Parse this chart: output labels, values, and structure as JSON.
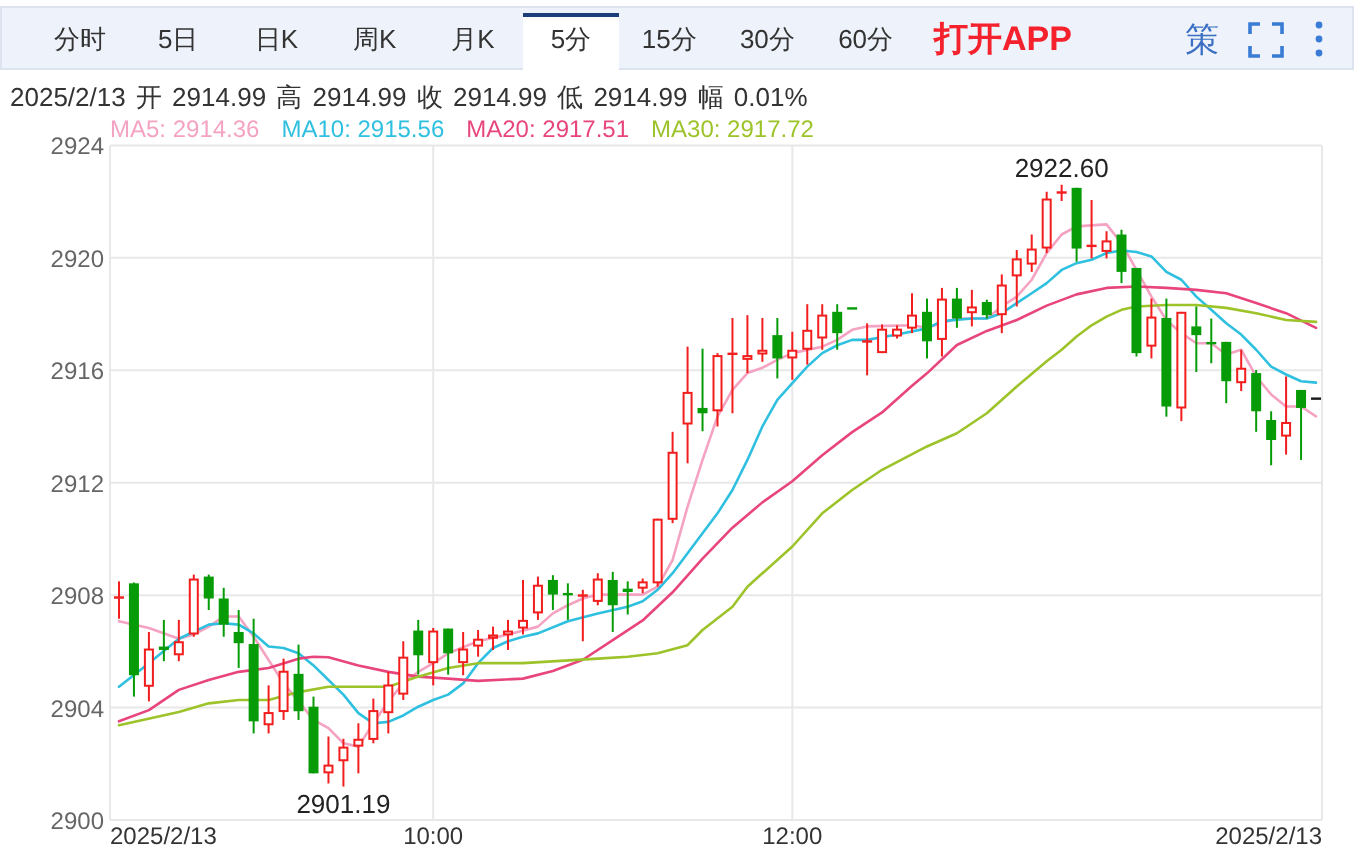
{
  "chart_data": {
    "type": "candlestick",
    "subtitle": "2025/2/13 开 2914.99 高 2914.99 收 2914.99 低 2914.99 幅 0.01%",
    "annotations": [
      "分时",
      "5日",
      "日K",
      "周K",
      "月K",
      "5分",
      "15分",
      "30分",
      "60分",
      "打开APP",
      "策",
      {
        "text": "2922.60",
        "x": "2025-02-13T13:30",
        "y": 2922.6
      },
      {
        "text": "2901.19",
        "x": "2025-02-13T09:30",
        "y": 2901.19
      }
    ],
    "x": [
      "2025-02-13T08:15",
      "2025-02-13T08:20",
      "2025-02-13T08:25",
      "2025-02-13T08:30",
      "2025-02-13T08:35",
      "2025-02-13T08:40",
      "2025-02-13T08:45",
      "2025-02-13T08:50",
      "2025-02-13T08:55",
      "2025-02-13T09:00",
      "2025-02-13T09:05",
      "2025-02-13T09:10",
      "2025-02-13T09:15",
      "2025-02-13T09:20",
      "2025-02-13T09:25",
      "2025-02-13T09:30",
      "2025-02-13T09:35",
      "2025-02-13T09:40",
      "2025-02-13T09:45",
      "2025-02-13T09:50",
      "2025-02-13T09:55",
      "2025-02-13T10:00",
      "2025-02-13T10:05",
      "2025-02-13T10:10",
      "2025-02-13T10:15",
      "2025-02-13T10:20",
      "2025-02-13T10:25",
      "2025-02-13T10:30",
      "2025-02-13T10:35",
      "2025-02-13T10:40",
      "2025-02-13T10:45",
      "2025-02-13T10:50",
      "2025-02-13T10:55",
      "2025-02-13T11:00",
      "2025-02-13T11:05",
      "2025-02-13T11:10",
      "2025-02-13T11:15",
      "2025-02-13T11:20",
      "2025-02-13T11:25",
      "2025-02-13T11:30",
      "2025-02-13T11:35",
      "2025-02-13T11:40",
      "2025-02-13T11:45",
      "2025-02-13T11:50",
      "2025-02-13T11:55",
      "2025-02-13T12:00",
      "2025-02-13T12:05",
      "2025-02-13T12:10",
      "2025-02-13T12:15",
      "2025-02-13T12:20",
      "2025-02-13T12:25",
      "2025-02-13T12:30",
      "2025-02-13T12:35",
      "2025-02-13T12:40",
      "2025-02-13T12:45",
      "2025-02-13T12:50",
      "2025-02-13T12:55",
      "2025-02-13T13:00",
      "2025-02-13T13:05",
      "2025-02-13T13:10",
      "2025-02-13T13:15",
      "2025-02-13T13:20",
      "2025-02-13T13:25",
      "2025-02-13T13:30",
      "2025-02-13T13:35",
      "2025-02-13T13:40",
      "2025-02-13T13:45",
      "2025-02-13T13:50",
      "2025-02-13T13:55",
      "2025-02-13T14:00",
      "2025-02-13T14:05",
      "2025-02-13T14:10",
      "2025-02-13T14:15",
      "2025-02-13T14:20",
      "2025-02-13T14:25",
      "2025-02-13T14:30",
      "2025-02-13T14:35",
      "2025-02-13T14:40",
      "2025-02-13T14:45",
      "2025-02-13T14:50",
      "2025-02-13T14:55"
    ],
    "ohlc": [
      [
        2907.88,
        2908.49,
        2907.16,
        2907.95
      ],
      [
        2908.42,
        2908.45,
        2904.39,
        2905.15
      ],
      [
        2904.74,
        2906.69,
        2904.22,
        2906.1
      ],
      [
        2906.17,
        2907.12,
        2905.65,
        2906.05
      ],
      [
        2905.86,
        2907.12,
        2905.65,
        2906.36
      ],
      [
        2906.6,
        2908.73,
        2906.52,
        2908.59
      ],
      [
        2908.66,
        2908.73,
        2907.47,
        2907.88
      ],
      [
        2907.88,
        2908.26,
        2906.52,
        2906.95
      ],
      [
        2906.69,
        2907.47,
        2905.41,
        2906.29
      ],
      [
        2906.26,
        2907.16,
        2903.08,
        2903.51
      ],
      [
        2903.37,
        2904.79,
        2903.08,
        2903.84
      ],
      [
        2903.84,
        2905.74,
        2903.56,
        2905.31
      ],
      [
        2905.2,
        2906.24,
        2903.56,
        2903.87
      ],
      [
        2904.03,
        2904.39,
        2901.66,
        2901.66
      ],
      [
        2901.66,
        2902.97,
        2901.3,
        2901.97
      ],
      [
        2902.09,
        2902.89,
        2901.19,
        2902.61
      ],
      [
        2902.61,
        2903.44,
        2901.66,
        2902.89
      ],
      [
        2902.85,
        2904.32,
        2902.73,
        2903.91
      ],
      [
        2903.8,
        2905.27,
        2903.08,
        2904.82
      ],
      [
        2904.46,
        2906.36,
        2904.27,
        2905.81
      ],
      [
        2906.74,
        2907.12,
        2905.17,
        2905.86
      ],
      [
        2905.58,
        2906.83,
        2904.79,
        2906.74
      ],
      [
        2906.81,
        2906.81,
        2905.17,
        2905.93
      ],
      [
        2905.58,
        2906.69,
        2905.15,
        2906.1
      ],
      [
        2906.17,
        2906.76,
        2905.81,
        2906.45
      ],
      [
        2906.45,
        2906.88,
        2906.05,
        2906.6
      ],
      [
        2906.57,
        2907.12,
        2906.05,
        2906.74
      ],
      [
        2906.81,
        2908.54,
        2906.6,
        2907.12
      ],
      [
        2907.35,
        2908.66,
        2907.12,
        2908.37
      ],
      [
        2908.54,
        2908.71,
        2907.47,
        2908.02
      ],
      [
        2908.07,
        2908.42,
        2907.12,
        2908.0
      ],
      [
        2907.95,
        2908.19,
        2906.36,
        2908.02
      ],
      [
        2907.76,
        2908.78,
        2907.64,
        2908.59
      ],
      [
        2908.54,
        2908.83,
        2906.69,
        2907.64
      ],
      [
        2908.23,
        2908.49,
        2907.31,
        2908.11
      ],
      [
        2908.23,
        2908.59,
        2908.07,
        2908.49
      ],
      [
        2908.42,
        2910.72,
        2908.3,
        2910.72
      ],
      [
        2910.68,
        2913.81,
        2910.56,
        2913.1
      ],
      [
        2914.07,
        2916.84,
        2912.69,
        2915.23
      ],
      [
        2914.66,
        2916.77,
        2913.83,
        2914.47
      ],
      [
        2914.54,
        2916.61,
        2914.0,
        2916.54
      ],
      [
        2916.56,
        2917.86,
        2914.47,
        2916.61
      ],
      [
        2916.37,
        2917.96,
        2915.9,
        2916.54
      ],
      [
        2916.56,
        2917.86,
        2916.3,
        2916.73
      ],
      [
        2917.25,
        2917.86,
        2915.71,
        2916.42
      ],
      [
        2916.42,
        2917.37,
        2915.66,
        2916.73
      ],
      [
        2916.73,
        2918.35,
        2916.2,
        2917.44
      ],
      [
        2917.13,
        2918.35,
        2916.73,
        2917.98
      ],
      [
        2918.08,
        2918.35,
        2916.73,
        2917.32
      ],
      [
        2918.2,
        2918.2,
        2918.2,
        2918.2
      ],
      [
        2917.01,
        2917.67,
        2915.82,
        2917.04
      ],
      [
        2916.61,
        2917.63,
        2916.61,
        2917.48
      ],
      [
        2917.2,
        2917.6,
        2917.13,
        2917.48
      ],
      [
        2917.48,
        2918.74,
        2917.32,
        2917.98
      ],
      [
        2918.08,
        2918.55,
        2916.42,
        2917.03
      ],
      [
        2917.08,
        2918.93,
        2916.49,
        2918.55
      ],
      [
        2918.55,
        2918.93,
        2917.51,
        2917.84
      ],
      [
        2918.03,
        2918.86,
        2917.56,
        2918.27
      ],
      [
        2918.43,
        2918.51,
        2917.84,
        2917.96
      ],
      [
        2917.96,
        2919.41,
        2917.32,
        2919.05
      ],
      [
        2919.34,
        2920.28,
        2918.27,
        2919.98
      ],
      [
        2919.76,
        2920.83,
        2919.5,
        2920.33
      ],
      [
        2920.33,
        2922.35,
        2920.17,
        2922.11
      ],
      [
        2922.3,
        2922.6,
        2922.02,
        2922.35
      ],
      [
        2922.49,
        2922.49,
        2919.86,
        2920.33
      ],
      [
        2920.4,
        2922.06,
        2919.98,
        2920.45
      ],
      [
        2920.21,
        2920.95,
        2919.98,
        2920.62
      ],
      [
        2920.83,
        2921.0,
        2919.1,
        2919.5
      ],
      [
        2919.64,
        2919.64,
        2916.49,
        2916.61
      ],
      [
        2916.84,
        2918.55,
        2916.42,
        2917.91
      ],
      [
        2917.86,
        2918.55,
        2914.35,
        2914.71
      ],
      [
        2914.64,
        2918.08,
        2914.19,
        2918.08
      ],
      [
        2917.56,
        2918.27,
        2915.94,
        2917.25
      ],
      [
        2916.99,
        2917.84,
        2916.25,
        2916.94
      ],
      [
        2917.01,
        2917.01,
        2914.83,
        2915.61
      ],
      [
        2915.54,
        2916.73,
        2915.26,
        2916.09
      ],
      [
        2915.9,
        2916.01,
        2913.81,
        2914.54
      ],
      [
        2914.23,
        2914.54,
        2912.62,
        2913.52
      ],
      [
        2913.64,
        2915.78,
        2913.0,
        2914.16
      ],
      [
        2915.3,
        2915.3,
        2912.81,
        2914.66
      ],
      [
        2914.99,
        2914.99,
        2914.99,
        2914.99
      ]
    ],
    "colors": [
      "#f21d1d",
      "#079c07",
      "#f21d1d",
      "#079c07",
      "#f21d1d",
      "#f21d1d",
      "#079c07",
      "#079c07",
      "#079c07",
      "#079c07",
      "#f21d1d",
      "#f21d1d",
      "#079c07",
      "#079c07",
      "#f21d1d",
      "#f21d1d",
      "#f21d1d",
      "#f21d1d",
      "#f21d1d",
      "#f21d1d",
      "#079c07",
      "#f21d1d",
      "#079c07",
      "#f21d1d",
      "#f21d1d",
      "#f21d1d",
      "#f21d1d",
      "#f21d1d",
      "#f21d1d",
      "#079c07",
      "#079c07",
      "#f21d1d",
      "#f21d1d",
      "#079c07",
      "#079c07",
      "#f21d1d",
      "#f21d1d",
      "#f21d1d",
      "#f21d1d",
      "#079c07",
      "#f21d1d",
      "#f21d1d",
      "#f21d1d",
      "#f21d1d",
      "#079c07",
      "#f21d1d",
      "#f21d1d",
      "#f21d1d",
      "#079c07",
      "#079c07",
      "#f21d1d",
      "#f21d1d",
      "#f21d1d",
      "#f21d1d",
      "#079c07",
      "#f21d1d",
      "#079c07",
      "#f21d1d",
      "#079c07",
      "#f21d1d",
      "#f21d1d",
      "#f21d1d",
      "#f21d1d",
      "#f21d1d",
      "#079c07",
      "#f21d1d",
      "#f21d1d",
      "#079c07",
      "#079c07",
      "#f21d1d",
      "#079c07",
      "#f21d1d",
      "#079c07",
      "#079c07",
      "#079c07",
      "#f21d1d",
      "#079c07",
      "#079c07",
      "#f21d1d",
      "#079c07",
      "#1a1a1a"
    ],
    "series": [
      {
        "name": "MA5: 2914.36",
        "type": "line",
        "color": "#f4a3c2",
        "x": [
          "2025-02-13T08:15",
          "2025-02-13T08:25",
          "2025-02-13T08:35",
          "2025-02-13T08:40",
          "2025-02-13T08:45",
          "2025-02-13T08:50",
          "2025-02-13T08:55",
          "2025-02-13T09:00",
          "2025-02-13T09:05",
          "2025-02-13T09:10",
          "2025-02-13T09:15",
          "2025-02-13T09:20",
          "2025-02-13T09:25",
          "2025-02-13T09:30",
          "2025-02-13T09:35",
          "2025-02-13T09:40",
          "2025-02-13T09:45",
          "2025-02-13T09:50",
          "2025-02-13T09:55",
          "2025-02-13T10:00",
          "2025-02-13T10:05",
          "2025-02-13T10:15",
          "2025-02-13T10:25",
          "2025-02-13T10:35",
          "2025-02-13T10:40",
          "2025-02-13T10:45",
          "2025-02-13T10:50",
          "2025-02-13T10:55",
          "2025-02-13T11:10",
          "2025-02-13T11:15",
          "2025-02-13T11:20",
          "2025-02-13T11:25",
          "2025-02-13T11:30",
          "2025-02-13T11:35",
          "2025-02-13T11:40",
          "2025-02-13T11:45",
          "2025-02-13T11:50",
          "2025-02-13T11:55",
          "2025-02-13T12:00",
          "2025-02-13T12:10",
          "2025-02-13T12:15",
          "2025-02-13T12:20",
          "2025-02-13T12:25",
          "2025-02-13T12:40",
          "2025-02-13T12:45",
          "2025-02-13T12:50",
          "2025-02-13T12:55",
          "2025-02-13T13:05",
          "2025-02-13T13:10",
          "2025-02-13T13:15",
          "2025-02-13T13:20",
          "2025-02-13T13:25",
          "2025-02-13T13:30",
          "2025-02-13T13:35",
          "2025-02-13T13:45",
          "2025-02-13T13:50",
          "2025-02-13T13:55",
          "2025-02-13T14:00",
          "2025-02-13T14:05",
          "2025-02-13T14:10",
          "2025-02-13T14:15",
          "2025-02-13T14:20",
          "2025-02-13T14:25",
          "2025-02-13T14:30",
          "2025-02-13T14:35",
          "2025-02-13T14:40",
          "2025-02-13T14:45",
          "2025-02-13T14:50",
          "2025-02-13T14:55"
        ],
        "values": [
          2907.07,
          2906.83,
          2906.45,
          2906.6,
          2906.88,
          2907.24,
          2907.24,
          2906.52,
          2905.69,
          2904.86,
          2904.22,
          2903.56,
          2903.27,
          2902.73,
          2902.61,
          2903.44,
          2904.22,
          2904.86,
          2905.27,
          2905.58,
          2905.93,
          2906.36,
          2906.6,
          2906.88,
          2907.35,
          2907.64,
          2907.88,
          2908.02,
          2908.02,
          2908.3,
          2909.25,
          2911.15,
          2912.81,
          2914.35,
          2915.3,
          2915.9,
          2916.09,
          2916.37,
          2916.61,
          2916.84,
          2917.08,
          2917.44,
          2917.56,
          2917.6,
          2917.51,
          2917.67,
          2917.84,
          2917.84,
          2918.27,
          2918.62,
          2919.22,
          2920.17,
          2920.83,
          2921.12,
          2921.19,
          2920.52,
          2919.57,
          2918.62,
          2917.79,
          2917.32,
          2916.96,
          2916.96,
          2916.56,
          2916.73,
          2915.78,
          2915.14,
          2914.71,
          2914.71,
          2914.36
        ]
      },
      {
        "name": "MA10: 2915.56",
        "type": "line",
        "color": "#2fc0e0",
        "x": [
          "2025-02-13T08:15",
          "2025-02-13T08:25",
          "2025-02-13T08:35",
          "2025-02-13T08:45",
          "2025-02-13T08:50",
          "2025-02-13T08:55",
          "2025-02-13T09:00",
          "2025-02-13T09:05",
          "2025-02-13T09:10",
          "2025-02-13T09:15",
          "2025-02-13T09:20",
          "2025-02-13T09:25",
          "2025-02-13T09:30",
          "2025-02-13T09:35",
          "2025-02-13T09:40",
          "2025-02-13T09:45",
          "2025-02-13T09:50",
          "2025-02-13T09:55",
          "2025-02-13T10:00",
          "2025-02-13T10:05",
          "2025-02-13T10:10",
          "2025-02-13T10:15",
          "2025-02-13T10:20",
          "2025-02-13T10:25",
          "2025-02-13T10:30",
          "2025-02-13T10:35",
          "2025-02-13T10:45",
          "2025-02-13T10:55",
          "2025-02-13T11:05",
          "2025-02-13T11:10",
          "2025-02-13T11:15",
          "2025-02-13T11:20",
          "2025-02-13T11:25",
          "2025-02-13T11:30",
          "2025-02-13T11:35",
          "2025-02-13T11:40",
          "2025-02-13T11:45",
          "2025-02-13T11:50",
          "2025-02-13T11:55",
          "2025-02-13T12:00",
          "2025-02-13T12:05",
          "2025-02-13T12:10",
          "2025-02-13T12:15",
          "2025-02-13T12:20",
          "2025-02-13T12:25",
          "2025-02-13T12:35",
          "2025-02-13T12:45",
          "2025-02-13T12:50",
          "2025-02-13T13:00",
          "2025-02-13T13:05",
          "2025-02-13T13:10",
          "2025-02-13T13:15",
          "2025-02-13T13:20",
          "2025-02-13T13:25",
          "2025-02-13T13:30",
          "2025-02-13T13:35",
          "2025-02-13T13:40",
          "2025-02-13T13:45",
          "2025-02-13T13:50",
          "2025-02-13T13:55",
          "2025-02-13T14:00",
          "2025-02-13T14:05",
          "2025-02-13T14:10",
          "2025-02-13T14:15",
          "2025-02-13T14:20",
          "2025-02-13T14:25",
          "2025-02-13T14:30",
          "2025-02-13T14:35",
          "2025-02-13T14:40",
          "2025-02-13T14:45",
          "2025-02-13T14:50",
          "2025-02-13T14:55"
        ],
        "values": [
          2904.74,
          2905.58,
          2906.45,
          2906.95,
          2907.0,
          2906.95,
          2906.64,
          2906.17,
          2906.12,
          2905.93,
          2905.5,
          2904.98,
          2904.46,
          2903.8,
          2903.44,
          2903.49,
          2903.72,
          2904.03,
          2904.27,
          2904.46,
          2904.86,
          2905.58,
          2906.12,
          2906.36,
          2906.52,
          2906.64,
          2907.07,
          2907.35,
          2907.59,
          2907.78,
          2908.19,
          2908.78,
          2909.49,
          2910.2,
          2910.91,
          2911.74,
          2912.81,
          2914.0,
          2914.95,
          2915.54,
          2916.13,
          2916.61,
          2916.89,
          2917.08,
          2917.08,
          2917.27,
          2917.49,
          2917.75,
          2917.84,
          2917.84,
          2918.03,
          2918.39,
          2918.74,
          2919.1,
          2919.57,
          2919.81,
          2919.93,
          2920.17,
          2920.26,
          2920.21,
          2920.05,
          2919.5,
          2919.22,
          2918.62,
          2918.15,
          2917.67,
          2917.27,
          2916.73,
          2916.13,
          2915.85,
          2915.61,
          2915.56
        ]
      },
      {
        "name": "MA20: 2917.51",
        "type": "line",
        "color": "#e8457c",
        "x": [
          "2025-02-13T08:15",
          "2025-02-13T08:25",
          "2025-02-13T08:35",
          "2025-02-13T08:45",
          "2025-02-13T08:55",
          "2025-02-13T09:05",
          "2025-02-13T09:15",
          "2025-02-13T09:20",
          "2025-02-13T09:25",
          "2025-02-13T09:35",
          "2025-02-13T09:45",
          "2025-02-13T09:55",
          "2025-02-13T10:05",
          "2025-02-13T10:15",
          "2025-02-13T10:30",
          "2025-02-13T10:40",
          "2025-02-13T10:50",
          "2025-02-13T11:00",
          "2025-02-13T11:10",
          "2025-02-13T11:20",
          "2025-02-13T11:30",
          "2025-02-13T11:40",
          "2025-02-13T11:50",
          "2025-02-13T12:00",
          "2025-02-13T12:10",
          "2025-02-13T12:20",
          "2025-02-13T12:30",
          "2025-02-13T12:40",
          "2025-02-13T12:45",
          "2025-02-13T12:55",
          "2025-02-13T13:05",
          "2025-02-13T13:15",
          "2025-02-13T13:25",
          "2025-02-13T13:35",
          "2025-02-13T13:45",
          "2025-02-13T13:55",
          "2025-02-13T14:05",
          "2025-02-13T14:15",
          "2025-02-13T14:25",
          "2025-02-13T14:35",
          "2025-02-13T14:45",
          "2025-02-13T14:55"
        ],
        "values": [
          2903.51,
          2903.91,
          2904.63,
          2904.98,
          2905.27,
          2905.41,
          2905.74,
          2905.81,
          2905.79,
          2905.5,
          2905.27,
          2905.1,
          2905.03,
          2904.95,
          2905.03,
          2905.3,
          2905.7,
          2906.4,
          2907.1,
          2908.1,
          2909.3,
          2910.4,
          2911.3,
          2912.05,
          2912.98,
          2913.8,
          2914.5,
          2915.45,
          2915.89,
          2916.9,
          2917.4,
          2917.79,
          2918.3,
          2918.7,
          2918.93,
          2918.98,
          2918.93,
          2918.86,
          2918.74,
          2918.39,
          2918.03,
          2917.51
        ]
      },
      {
        "name": "MA30: 2917.72",
        "type": "line",
        "color": "#9dc32a",
        "x": [
          "2025-02-13T08:15",
          "2025-02-13T08:35",
          "2025-02-13T08:45",
          "2025-02-13T08:55",
          "2025-02-13T09:05",
          "2025-02-13T09:15",
          "2025-02-13T09:25",
          "2025-02-13T09:45",
          "2025-02-13T09:55",
          "2025-02-13T10:05",
          "2025-02-13T10:15",
          "2025-02-13T10:30",
          "2025-02-13T10:55",
          "2025-02-13T11:05",
          "2025-02-13T11:15",
          "2025-02-13T11:25",
          "2025-02-13T11:30",
          "2025-02-13T11:40",
          "2025-02-13T11:45",
          "2025-02-13T12:00",
          "2025-02-13T12:10",
          "2025-02-13T12:20",
          "2025-02-13T12:30",
          "2025-02-13T12:45",
          "2025-02-13T12:55",
          "2025-02-13T13:05",
          "2025-02-13T13:15",
          "2025-02-13T13:25",
          "2025-02-13T13:30",
          "2025-02-13T13:35",
          "2025-02-13T13:40",
          "2025-02-13T13:45",
          "2025-02-13T13:50",
          "2025-02-13T13:55",
          "2025-02-13T14:05",
          "2025-02-13T14:15",
          "2025-02-13T14:25",
          "2025-02-13T14:35",
          "2025-02-13T14:45",
          "2025-02-13T14:55"
        ],
        "values": [
          2903.37,
          2903.84,
          2904.15,
          2904.27,
          2904.27,
          2904.55,
          2904.74,
          2904.74,
          2905.1,
          2905.41,
          2905.58,
          2905.58,
          2905.74,
          2905.81,
          2905.93,
          2906.22,
          2906.76,
          2907.59,
          2908.3,
          2909.73,
          2910.91,
          2911.74,
          2912.46,
          2913.29,
          2913.76,
          2914.47,
          2915.42,
          2916.32,
          2916.73,
          2917.2,
          2917.6,
          2917.91,
          2918.15,
          2918.27,
          2918.32,
          2918.32,
          2918.22,
          2918.03,
          2917.79,
          2917.72
        ]
      }
    ],
    "xlim": [
      "2025-02-13T08:12",
      "2025-02-13T14:57"
    ],
    "xticks": [
      {
        "value": "2025-02-13T08:12",
        "label": "2025/2/13"
      },
      {
        "value": "2025-02-13T10:00",
        "label": "10:00"
      },
      {
        "value": "2025-02-13T12:00",
        "label": "12:00"
      },
      {
        "value": "2025-02-13T14:57",
        "label": "2025/2/13"
      }
    ],
    "ylim": [
      2900,
      2924
    ],
    "yticks": [
      2900,
      2904,
      2908,
      2912,
      2916,
      2920,
      2924
    ],
    "grid": true,
    "legend": "top left"
  }
}
